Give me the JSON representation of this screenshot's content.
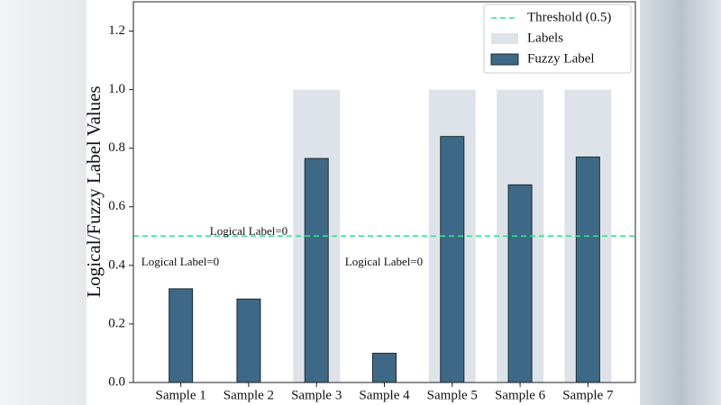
{
  "chart_data": {
    "type": "bar",
    "ylabel": "Logical/Fuzzy Label Values",
    "categories": [
      "Sample 1",
      "Sample 2",
      "Sample 3",
      "Sample 4",
      "Sample 5",
      "Sample 6",
      "Sample 7"
    ],
    "series": [
      {
        "name": "Labels",
        "color": "#dde3e8",
        "values": [
          0,
          0,
          1,
          0,
          1,
          1,
          1
        ]
      },
      {
        "name": "Fuzzy Label",
        "color": "#3d6986",
        "values": [
          0.32,
          0.285,
          0.765,
          0.1,
          0.84,
          0.675,
          0.77
        ]
      }
    ],
    "threshold": {
      "name": "Threshold (0.5)",
      "value": 0.5,
      "color": "#33e08c"
    },
    "annotations": [
      "Logical Label=0",
      "Logical Label=0",
      "Logical Label=0"
    ],
    "ylim": [
      0,
      1.3
    ],
    "yticks": [
      {
        "value": 0,
        "label": "0.0"
      },
      0.2,
      0.4,
      0.6,
      0.8,
      {
        "value": 1,
        "label": "1.0"
      },
      1.2
    ],
    "legend": "upper right"
  }
}
